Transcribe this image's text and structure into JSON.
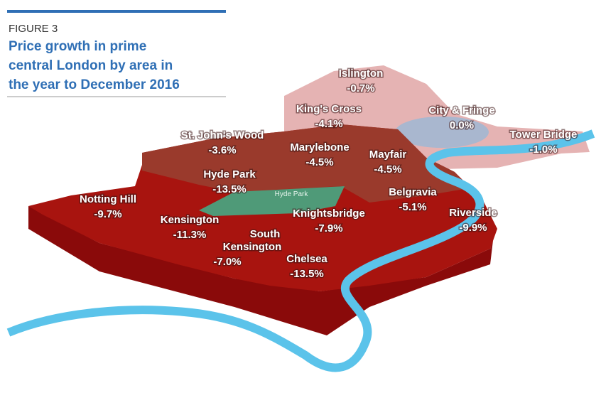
{
  "header": {
    "figure_label": "FIGURE 3",
    "title_lines": [
      "Price growth in prime",
      "central London by area in",
      "the year to December 2016"
    ]
  },
  "map": {
    "park_label": "Hyde Park",
    "areas": [
      {
        "name_lines": [
          "Islington"
        ],
        "change": "-0.7%"
      },
      {
        "name_lines": [
          "King's Cross"
        ],
        "change": "-4.1%"
      },
      {
        "name_lines": [
          "City & Fringe"
        ],
        "change": "0.0%"
      },
      {
        "name_lines": [
          "Tower Bridge"
        ],
        "change": "-1.0%"
      },
      {
        "name_lines": [
          "St. John's Wood"
        ],
        "change": "-3.6%"
      },
      {
        "name_lines": [
          "Marylebone"
        ],
        "change": "-4.5%"
      },
      {
        "name_lines": [
          "Mayfair"
        ],
        "change": "-4.5%"
      },
      {
        "name_lines": [
          "Hyde Park"
        ],
        "change": "-13.5%"
      },
      {
        "name_lines": [
          "Belgravia"
        ],
        "change": "-5.1%"
      },
      {
        "name_lines": [
          "Notting Hill"
        ],
        "change": "-9.7%"
      },
      {
        "name_lines": [
          "Riverside"
        ],
        "change": "-9.9%"
      },
      {
        "name_lines": [
          "Knightsbridge"
        ],
        "change": "-7.9%"
      },
      {
        "name_lines": [
          "Kensington"
        ],
        "change": "-11.3%"
      },
      {
        "name_lines": [
          "South",
          "Kensington"
        ],
        "change": "-7.0%"
      },
      {
        "name_lines": [
          "Chelsea"
        ],
        "change": "-13.5%"
      }
    ]
  }
}
